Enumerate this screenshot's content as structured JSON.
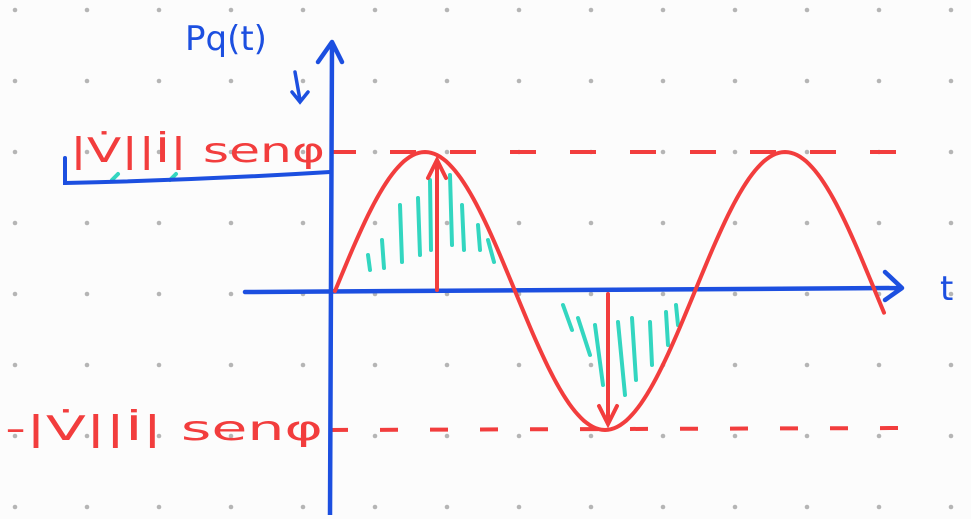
{
  "labels": {
    "y_axis": "Pq(t)",
    "x_axis": "t",
    "max": "|V̇||İ| senφ",
    "min": "-|V̇||İ| senφ"
  }
}
